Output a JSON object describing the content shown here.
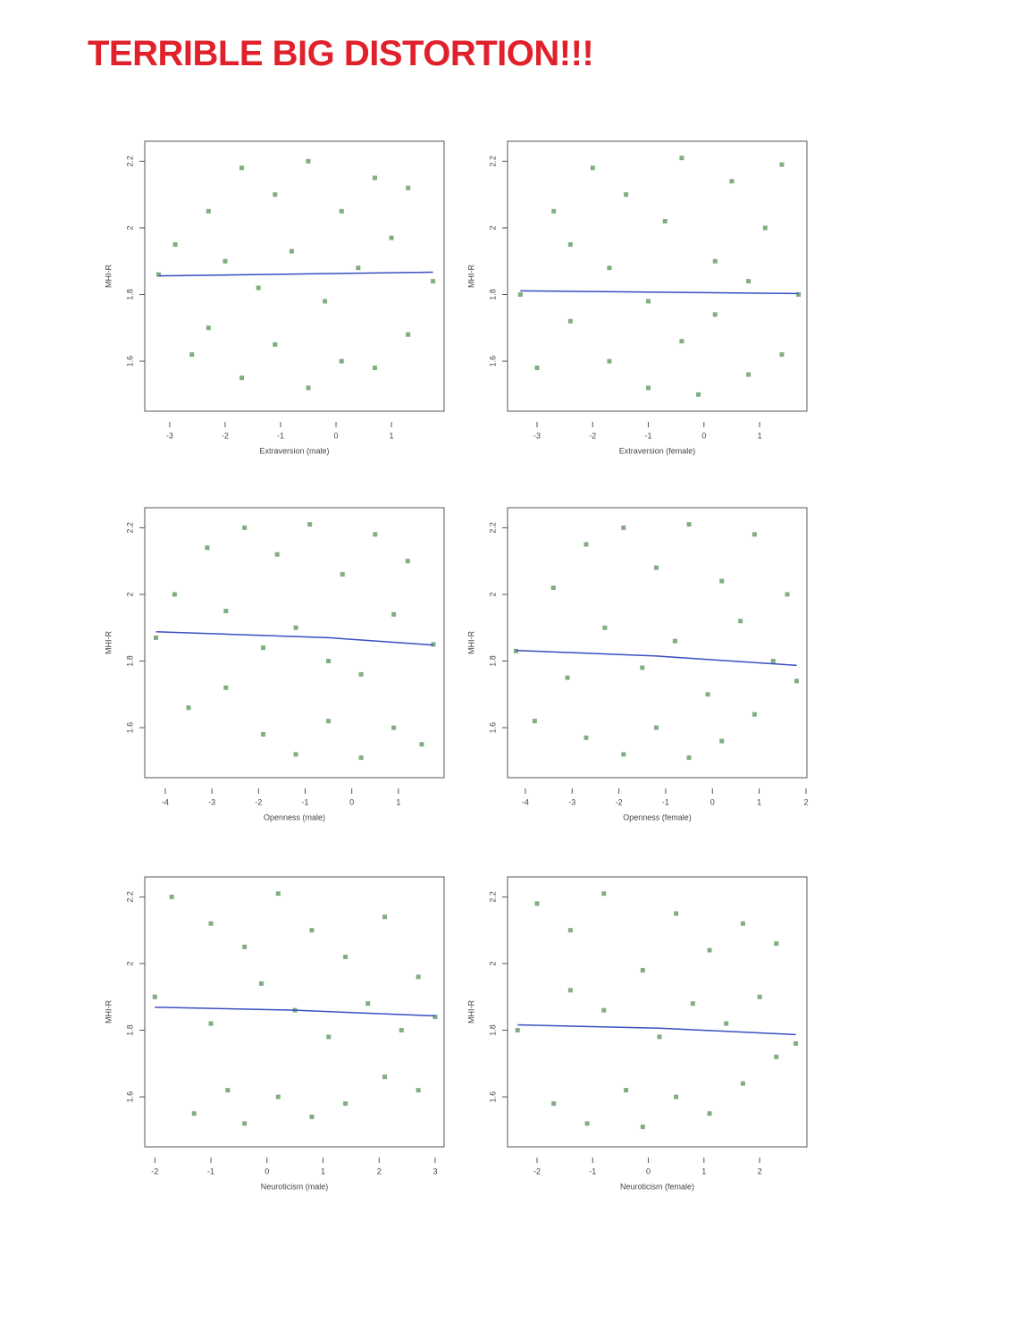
{
  "headline": "TERRIBLE BIG DISTORTION!!!",
  "chart_data": [
    {
      "type": "scatter",
      "x_label": "Extraversion (male)",
      "y_label": "MHI-R",
      "color": "#1a6b1a",
      "trend_color": "#3a4fc0",
      "xlim": [
        -3.45,
        1.95
      ],
      "xticks": [
        -3,
        -2,
        -1,
        0,
        1
      ],
      "ylim": [
        1.45,
        2.26
      ],
      "yticks": [
        2.2,
        2.0,
        1.8,
        1.6
      ],
      "x": [
        -3.2,
        -2.9,
        -2.6,
        -2.3,
        -2.3,
        -2.0,
        -1.7,
        -1.7,
        -1.4,
        -1.1,
        -1.1,
        -0.8,
        -0.5,
        -0.5,
        -0.2,
        0.1,
        0.1,
        0.4,
        0.7,
        0.7,
        1.0,
        1.3,
        1.3,
        1.75
      ],
      "y": [
        1.86,
        1.95,
        1.62,
        2.05,
        1.7,
        1.9,
        2.18,
        1.55,
        1.82,
        2.1,
        1.65,
        1.93,
        2.2,
        1.52,
        1.78,
        2.05,
        1.6,
        1.88,
        2.15,
        1.58,
        1.97,
        2.12,
        1.68,
        1.84
      ],
      "trend": {
        "x": [
          -3.2,
          -0.5,
          1.75
        ],
        "y": [
          1.856,
          1.862,
          1.867
        ]
      }
    },
    {
      "type": "scatter",
      "x_label": "Extraversion (female)",
      "y_label": "MHI-R",
      "color": "#1a6b1a",
      "trend_color": "#3a4fc0",
      "xlim": [
        -3.53,
        1.85
      ],
      "xticks": [
        -3,
        -2,
        -1,
        0,
        1
      ],
      "ylim": [
        1.45,
        2.26
      ],
      "yticks": [
        2.2,
        2.0,
        1.8,
        1.6
      ],
      "x": [
        -3.3,
        -3.0,
        -2.7,
        -2.4,
        -2.4,
        -2.0,
        -1.7,
        -1.7,
        -1.4,
        -1.0,
        -1.0,
        -0.7,
        -0.4,
        -0.4,
        -0.1,
        0.2,
        0.2,
        0.5,
        0.8,
        0.8,
        1.1,
        1.4,
        1.4,
        1.7
      ],
      "y": [
        1.8,
        1.58,
        2.05,
        1.72,
        1.95,
        2.18,
        1.6,
        1.88,
        2.1,
        1.52,
        1.78,
        2.02,
        1.66,
        2.21,
        1.5,
        1.9,
        1.74,
        2.14,
        1.56,
        1.84,
        2.0,
        1.62,
        2.19,
        1.8
      ],
      "trend": {
        "x": [
          -3.3,
          -1.4,
          1.7
        ],
        "y": [
          1.811,
          1.808,
          1.803
        ]
      }
    },
    {
      "type": "scatter",
      "x_label": "Openness (male)",
      "y_label": "MHI-R",
      "color": "#1a6b1a",
      "trend_color": "#3a4fc0",
      "xlim": [
        -4.44,
        1.98
      ],
      "xticks": [
        -4,
        -3,
        -2,
        -1,
        0,
        1
      ],
      "ylim": [
        1.45,
        2.26
      ],
      "yticks": [
        2.2,
        2.0,
        1.8,
        1.6
      ],
      "x": [
        -4.2,
        -3.8,
        -3.5,
        -3.1,
        -2.7,
        -2.7,
        -2.3,
        -1.9,
        -1.9,
        -1.6,
        -1.2,
        -1.2,
        -0.9,
        -0.5,
        -0.5,
        -0.2,
        0.2,
        0.2,
        0.5,
        0.9,
        0.9,
        1.2,
        1.5,
        1.75
      ],
      "y": [
        1.87,
        2.0,
        1.66,
        2.14,
        1.72,
        1.95,
        2.2,
        1.58,
        1.84,
        2.12,
        1.52,
        1.9,
        2.21,
        1.62,
        1.8,
        2.06,
        1.51,
        1.76,
        2.18,
        1.6,
        1.94,
        2.1,
        1.55,
        1.85
      ],
      "trend": {
        "x": [
          -4.2,
          -0.5,
          1.75
        ],
        "y": [
          1.888,
          1.87,
          1.848
        ]
      }
    },
    {
      "type": "scatter",
      "x_label": "Openness (female)",
      "y_label": "MHI-R",
      "color": "#1a6b1a",
      "trend_color": "#3a4fc0",
      "xlim": [
        -4.38,
        2.02
      ],
      "xticks": [
        -4,
        -3,
        -2,
        -1,
        0,
        1,
        2
      ],
      "ylim": [
        1.45,
        2.26
      ],
      "yticks": [
        2.2,
        2.0,
        1.8,
        1.6
      ],
      "x": [
        -4.2,
        -3.8,
        -3.4,
        -3.1,
        -2.7,
        -2.7,
        -2.3,
        -1.9,
        -1.9,
        -1.5,
        -1.2,
        -1.2,
        -0.8,
        -0.5,
        -0.5,
        -0.1,
        0.2,
        0.2,
        0.6,
        0.9,
        0.9,
        1.3,
        1.6,
        1.8
      ],
      "y": [
        1.83,
        1.62,
        2.02,
        1.75,
        2.15,
        1.57,
        1.9,
        2.2,
        1.52,
        1.78,
        2.08,
        1.6,
        1.86,
        2.21,
        1.51,
        1.7,
        2.04,
        1.56,
        1.92,
        2.18,
        1.64,
        1.8,
        2.0,
        1.74
      ],
      "trend": {
        "x": [
          -4.2,
          -1.2,
          1.8
        ],
        "y": [
          1.832,
          1.815,
          1.787
        ]
      }
    },
    {
      "type": "scatter",
      "x_label": "Neuroticism (male)",
      "y_label": "MHI-R",
      "color": "#1a6b1a",
      "trend_color": "#3a4fc0",
      "xlim": [
        -2.18,
        3.16
      ],
      "xticks": [
        -2,
        -1,
        0,
        1,
        2,
        3
      ],
      "ylim": [
        1.45,
        2.26
      ],
      "yticks": [
        2.2,
        2.0,
        1.8,
        1.6
      ],
      "x": [
        -2.0,
        -1.7,
        -1.3,
        -1.0,
        -1.0,
        -0.7,
        -0.4,
        -0.4,
        -0.1,
        0.2,
        0.2,
        0.5,
        0.8,
        0.8,
        1.1,
        1.4,
        1.4,
        1.8,
        2.1,
        2.1,
        2.4,
        2.7,
        2.7,
        3.0
      ],
      "y": [
        1.9,
        2.2,
        1.55,
        1.82,
        2.12,
        1.62,
        2.05,
        1.52,
        1.94,
        2.21,
        1.6,
        1.86,
        2.1,
        1.54,
        1.78,
        2.02,
        1.58,
        1.88,
        2.14,
        1.66,
        1.8,
        1.96,
        1.62,
        1.84
      ],
      "trend": {
        "x": [
          -2.0,
          0.5,
          3.0
        ],
        "y": [
          1.869,
          1.86,
          1.843
        ]
      }
    },
    {
      "type": "scatter",
      "x_label": "Neuroticism (female)",
      "y_label": "MHI-R",
      "color": "#1a6b1a",
      "trend_color": "#3a4fc0",
      "xlim": [
        -2.53,
        2.85
      ],
      "xticks": [
        -2,
        -1,
        0,
        1,
        2
      ],
      "ylim": [
        1.45,
        2.26
      ],
      "yticks": [
        2.2,
        2.0,
        1.8,
        1.6
      ],
      "x": [
        -2.35,
        -2.0,
        -1.7,
        -1.4,
        -1.4,
        -1.1,
        -0.8,
        -0.8,
        -0.4,
        -0.1,
        -0.1,
        0.2,
        0.5,
        0.5,
        0.8,
        1.1,
        1.1,
        1.4,
        1.7,
        1.7,
        2.0,
        2.3,
        2.3,
        2.65
      ],
      "y": [
        1.8,
        2.18,
        1.58,
        1.92,
        2.1,
        1.52,
        1.86,
        2.21,
        1.62,
        1.98,
        1.51,
        1.78,
        2.15,
        1.6,
        1.88,
        2.04,
        1.55,
        1.82,
        2.12,
        1.64,
        1.9,
        1.72,
        2.06,
        1.76
      ],
      "trend": {
        "x": [
          -2.35,
          0.2,
          2.65
        ],
        "y": [
          1.816,
          1.806,
          1.787
        ]
      }
    }
  ]
}
